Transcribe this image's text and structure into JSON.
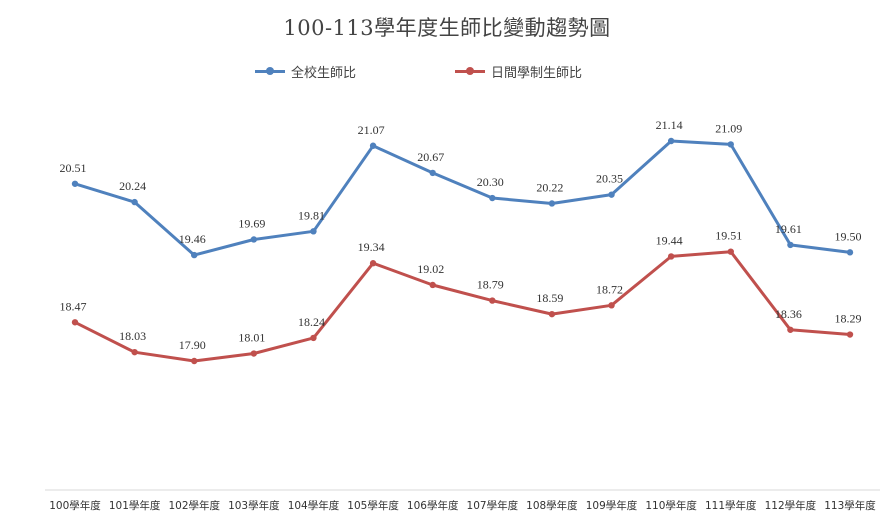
{
  "chart_data": {
    "type": "line",
    "title": "100-113學年度生師比變動趨勢圖",
    "categories": [
      "100學年度",
      "101學年度",
      "102學年度",
      "103學年度",
      "104學年度",
      "105學年度",
      "106學年度",
      "107學年度",
      "108學年度",
      "109學年度",
      "110學年度",
      "111學年度",
      "112學年度",
      "113學年度"
    ],
    "series": [
      {
        "name": "全校生師比",
        "color": "#4f81bd",
        "values": [
          20.51,
          20.24,
          19.46,
          19.69,
          19.81,
          21.07,
          20.67,
          20.3,
          20.22,
          20.35,
          21.14,
          21.09,
          19.61,
          19.5
        ],
        "labels": [
          "20.51",
          "20.24",
          "19.46",
          "19.69",
          "19.81",
          "21.07",
          "20.67",
          "20.30",
          "20.22",
          "20.35",
          "21.14",
          "21.09",
          "19.61",
          "19.50"
        ]
      },
      {
        "name": "日間學制生師比",
        "color": "#c0504d",
        "values": [
          18.47,
          18.03,
          17.9,
          18.01,
          18.24,
          19.34,
          19.02,
          18.79,
          18.59,
          18.72,
          19.44,
          19.51,
          18.36,
          18.29
        ],
        "labels": [
          "18.47",
          "18.03",
          "17.90",
          "18.01",
          "18.24",
          "19.34",
          "19.02",
          "18.79",
          "18.59",
          "18.72",
          "19.44",
          "19.51",
          "18.36",
          "18.29"
        ]
      }
    ],
    "legend_position": "top",
    "grid": false
  }
}
